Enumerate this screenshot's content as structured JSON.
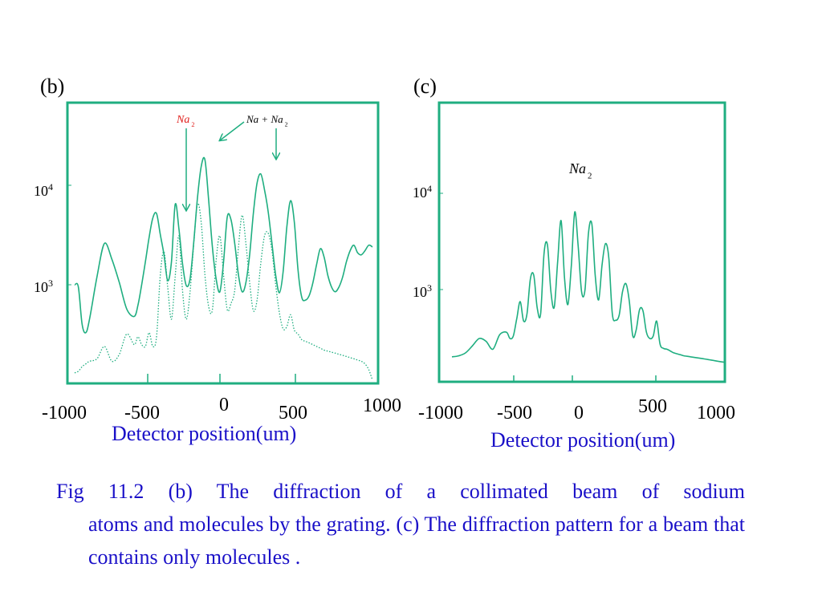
{
  "accent_color": "#1fae80",
  "caption_color": "#1a10c8",
  "chart_data": [
    {
      "type": "line",
      "panel": "(b)",
      "xlabel": "Detector position(um)",
      "xlim": [
        -1000,
        1000
      ],
      "x_ticks": [
        "-1000",
        "-500",
        "0",
        "500",
        "1000"
      ],
      "y_scale": "log",
      "y_ticks": [
        {
          "base": "10",
          "exp": "4"
        },
        {
          "base": "10",
          "exp": "3"
        }
      ],
      "annotations": [
        {
          "base": "Na",
          "sub": "2",
          "color": "#e0201c",
          "x": -280
        },
        {
          "text": "Na + Na",
          "sub": "2",
          "color": "#000000",
          "x": 380
        }
      ],
      "series": [
        {
          "style": "solid",
          "x": [
            -1000,
            -975,
            -950,
            -925,
            -900,
            -850,
            -800,
            -750,
            -700,
            -650,
            -600,
            -575,
            -550,
            -525,
            -500,
            -475,
            -450,
            -425,
            -400,
            -375,
            -350,
            -325,
            -300,
            -275,
            -250,
            -225,
            -200,
            -175,
            -150,
            -125,
            -100,
            -75,
            -50,
            -25,
            0,
            25,
            50,
            75,
            100,
            125,
            150,
            175,
            200,
            225,
            250,
            275,
            300,
            325,
            350,
            375,
            400,
            425,
            450,
            475,
            500,
            525,
            550,
            575,
            600,
            625,
            650,
            675,
            700,
            725,
            750,
            775,
            800,
            825,
            850,
            875,
            900,
            925,
            950,
            975,
            1000
          ],
          "y": [
            1000,
            950,
            400,
            330,
            450,
            1200,
            2600,
            1800,
            1050,
            570,
            480,
            620,
            1000,
            1700,
            3000,
            4700,
            5200,
            3200,
            2000,
            1100,
            1700,
            6400,
            3700,
            1600,
            980,
            1150,
            2700,
            7500,
            15500,
            18000,
            7000,
            2400,
            1150,
            850,
            1700,
            4800,
            4500,
            2600,
            1250,
            850,
            1050,
            2000,
            5200,
            10500,
            13000,
            9000,
            5400,
            2600,
            1250,
            830,
            1350,
            3800,
            7000,
            4300,
            1400,
            750,
            700,
            780,
            1050,
            1600,
            2300,
            1900,
            1250,
            950,
            850,
            950,
            1200,
            1700,
            2200,
            2500,
            2100,
            2000,
            2200,
            2500,
            2400
          ]
        },
        {
          "style": "dotted",
          "x": [
            -1000,
            -975,
            -950,
            -925,
            -900,
            -850,
            -800,
            -750,
            -700,
            -650,
            -600,
            -575,
            -550,
            -525,
            -500,
            -475,
            -450,
            -425,
            -400,
            -375,
            -350,
            -325,
            -300,
            -275,
            -250,
            -225,
            -200,
            -175,
            -150,
            -125,
            -100,
            -75,
            -50,
            -25,
            0,
            25,
            50,
            75,
            100,
            125,
            150,
            175,
            200,
            225,
            250,
            275,
            300,
            325,
            350,
            375,
            400,
            425,
            450,
            475,
            500,
            525,
            550,
            575,
            600,
            625,
            650,
            675,
            700,
            725,
            750,
            775,
            800,
            825,
            850,
            875,
            900,
            925,
            950,
            975,
            1000
          ],
          "y": [
            130,
            135,
            150,
            160,
            170,
            180,
            240,
            170,
            200,
            320,
            250,
            300,
            250,
            240,
            330,
            240,
            300,
            1250,
            2150,
            950,
            450,
            1200,
            3100,
            850,
            450,
            850,
            2600,
            6500,
            4200,
            1250,
            600,
            560,
            1750,
            3100,
            1250,
            560,
            650,
            880,
            2400,
            5000,
            2600,
            1050,
            550,
            700,
            1650,
            3100,
            3300,
            2200,
            1000,
            520,
            360,
            380,
            500,
            350,
            320,
            280,
            270,
            260,
            250,
            240,
            230,
            220,
            215,
            210,
            205,
            200,
            195,
            190,
            185,
            180,
            175,
            170,
            160,
            140,
            110
          ]
        }
      ]
    },
    {
      "type": "line",
      "panel": "(c)",
      "xlabel": "Detector position(um)",
      "xlim": [
        -1000,
        1000
      ],
      "x_ticks": [
        "-1000",
        "-500",
        "0",
        "500",
        "1000"
      ],
      "y_scale": "log",
      "y_ticks": [
        {
          "base": "10",
          "exp": "4"
        },
        {
          "base": "10",
          "exp": "3"
        }
      ],
      "annotations": [
        {
          "base": "Na",
          "sub": "2",
          "color": "#000000",
          "x": 100
        }
      ],
      "series": [
        {
          "style": "solid",
          "x": [
            -1000,
            -950,
            -900,
            -850,
            -800,
            -750,
            -700,
            -650,
            -600,
            -575,
            -550,
            -525,
            -500,
            -475,
            -450,
            -425,
            -400,
            -375,
            -350,
            -325,
            -300,
            -275,
            -250,
            -225,
            -200,
            -175,
            -150,
            -125,
            -100,
            -75,
            -50,
            -25,
            0,
            25,
            50,
            75,
            100,
            125,
            150,
            175,
            200,
            225,
            250,
            275,
            300,
            325,
            350,
            375,
            400,
            425,
            450,
            475,
            500,
            525,
            550,
            575,
            600,
            625,
            650,
            675,
            700,
            750,
            800,
            850,
            900,
            950,
            1000
          ],
          "y": [
            200,
            205,
            220,
            260,
            310,
            290,
            240,
            340,
            360,
            310,
            330,
            500,
            750,
            470,
            560,
            1300,
            1400,
            640,
            560,
            2400,
            2900,
            950,
            660,
            2000,
            5200,
            1300,
            700,
            1800,
            6400,
            2800,
            950,
            1000,
            3800,
            4800,
            1400,
            780,
            1800,
            3000,
            2100,
            560,
            480,
            540,
            950,
            1150,
            750,
            330,
            380,
            620,
            600,
            360,
            310,
            330,
            470,
            270,
            245,
            240,
            230,
            220,
            215,
            210,
            205,
            200,
            195,
            190,
            185,
            180,
            175
          ]
        }
      ]
    }
  ],
  "caption": {
    "line1": "Fig 11.2 (b) The diffraction of a collimated beam of sodium",
    "rest": "atoms and molecules by the grating. (c) The diffraction pattern for a beam that contains only  molecules ."
  }
}
